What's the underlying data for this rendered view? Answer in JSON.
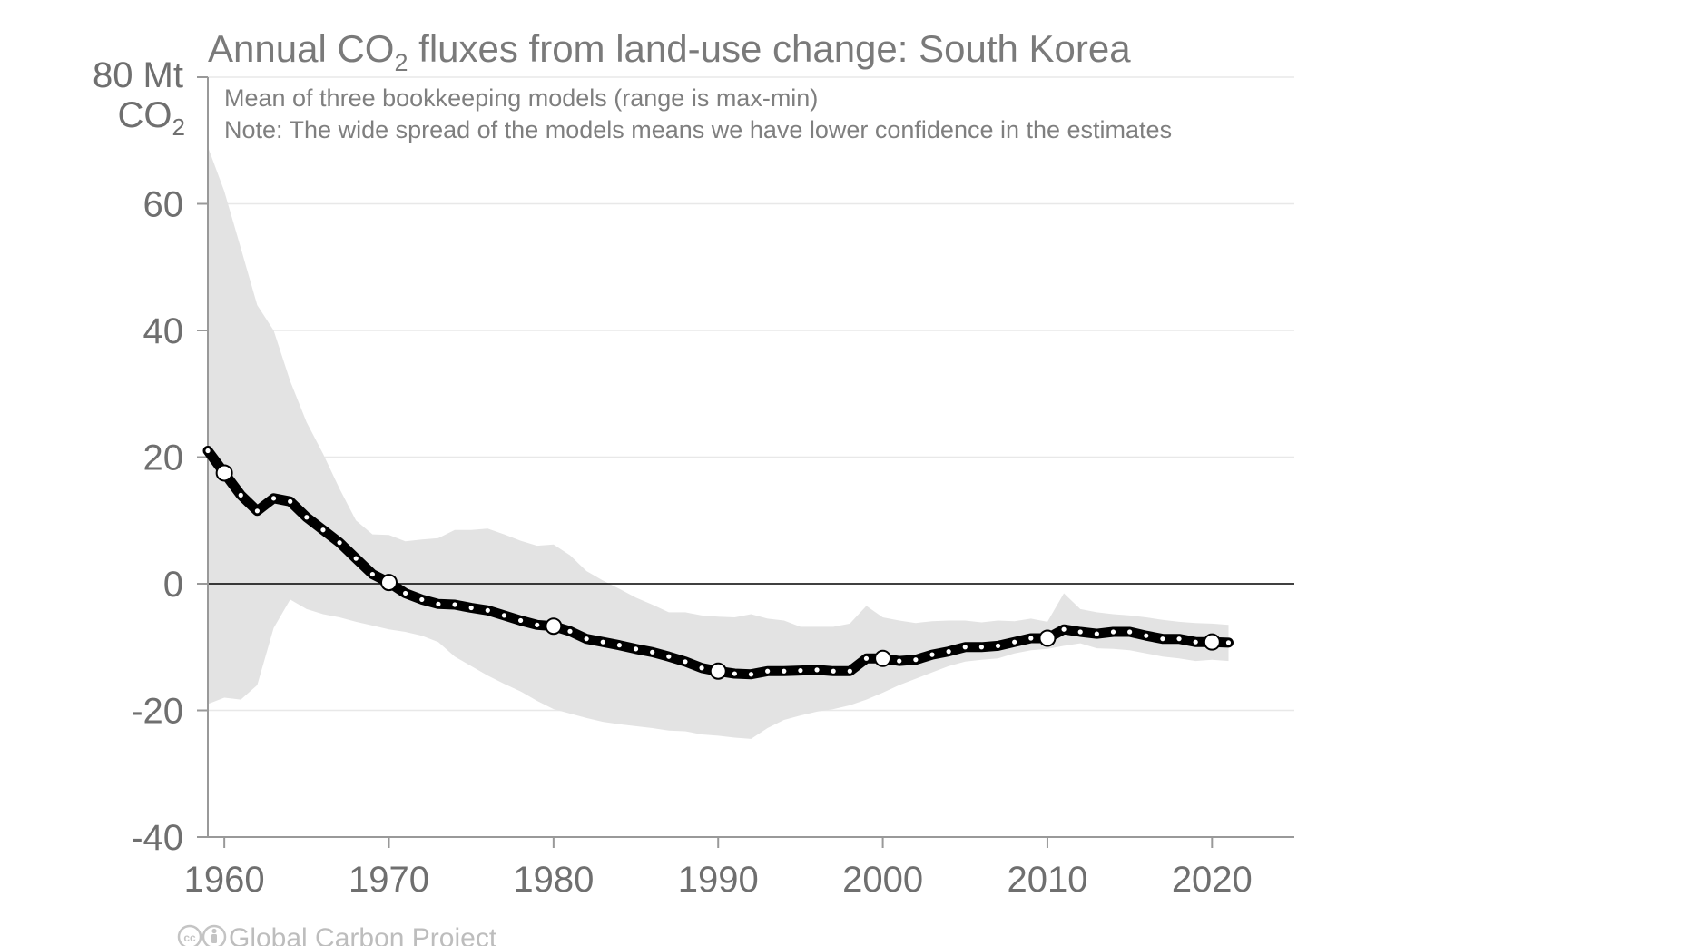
{
  "chart_data": {
    "type": "line",
    "title": "Annual CO₂ fluxes from land-use change: South Korea",
    "title_parts": {
      "pre": "Annual CO",
      "sub": "2",
      "post": " fluxes from land-use change: South Korea"
    },
    "subtitle_lines": [
      "Mean of three bookkeeping models (range is max-min)",
      "Note: The wide spread of the models means we have lower confidence in the estimates"
    ],
    "ylabel": "80 Mt CO₂",
    "ylabel_parts": {
      "line1": "80 Mt",
      "line2_pre": "CO",
      "line2_sub": "2"
    },
    "ylim": [
      -40,
      80
    ],
    "xlim": [
      1959,
      2025
    ],
    "y_ticks": [
      -40,
      -20,
      0,
      20,
      40,
      60
    ],
    "x_ticks": [
      1960,
      1970,
      1980,
      1990,
      2000,
      2010,
      2020
    ],
    "grid": true,
    "zero_line": true,
    "colors": {
      "mean_line": "#000000",
      "range_band": "#e3e3e3",
      "grid": "#e8e8e8",
      "axis": "#999999",
      "text": "#7a7a7a"
    },
    "series": [
      {
        "x": [
          1959,
          1960,
          1961,
          1962,
          1963,
          1964,
          1965,
          1966,
          1967,
          1968,
          1969,
          1970,
          1971,
          1972,
          1973,
          1974,
          1975,
          1976,
          1977,
          1978,
          1979,
          1980,
          1981,
          1982,
          1983,
          1984,
          1985,
          1986,
          1987,
          1988,
          1989,
          1990,
          1991,
          1992,
          1993,
          1994,
          1995,
          1996,
          1997,
          1998,
          1999,
          2000,
          2001,
          2002,
          2003,
          2004,
          2005,
          2006,
          2007,
          2008,
          2009,
          2010,
          2011,
          2012,
          2013,
          2014,
          2015,
          2016,
          2017,
          2018,
          2019,
          2020,
          2021
        ],
        "values": [
          21,
          17.5,
          14,
          11.5,
          13.5,
          13,
          10.5,
          8.5,
          6.5,
          4,
          1.5,
          0.2,
          -1.5,
          -2.5,
          -3.2,
          -3.3,
          -3.8,
          -4.2,
          -5,
          -5.8,
          -6.5,
          -6.7,
          -7.5,
          -8.7,
          -9.2,
          -9.7,
          -10.3,
          -10.8,
          -11.5,
          -12.3,
          -13.3,
          -13.8,
          -14.2,
          -14.3,
          -13.8,
          -13.8,
          -13.7,
          -13.6,
          -13.8,
          -13.8,
          -11.8,
          -11.8,
          -12.2,
          -12,
          -11.2,
          -10.7,
          -10,
          -10,
          -9.8,
          -9.2,
          -8.6,
          -8.6,
          -7.2,
          -7.6,
          -7.9,
          -7.6,
          -7.6,
          -8.2,
          -8.7,
          -8.7,
          -9.2,
          -9.2,
          -9.3
        ]
      }
    ],
    "range_band": {
      "x": [
        1959,
        1960,
        1961,
        1962,
        1963,
        1964,
        1965,
        1966,
        1967,
        1968,
        1969,
        1970,
        1971,
        1972,
        1973,
        1974,
        1975,
        1976,
        1977,
        1978,
        1979,
        1980,
        1981,
        1982,
        1983,
        1984,
        1985,
        1986,
        1987,
        1988,
        1989,
        1990,
        1991,
        1992,
        1993,
        1994,
        1995,
        1996,
        1997,
        1998,
        1999,
        2000,
        2001,
        2002,
        2003,
        2004,
        2005,
        2006,
        2007,
        2008,
        2009,
        2010,
        2011,
        2012,
        2013,
        2014,
        2015,
        2016,
        2017,
        2018,
        2019,
        2020,
        2021
      ],
      "max": [
        69,
        62,
        53,
        44,
        40,
        32,
        25.5,
        20.5,
        15,
        10,
        7.8,
        7.7,
        6.7,
        7,
        7.2,
        8.5,
        8.5,
        8.7,
        7.8,
        6.8,
        6,
        6.2,
        4.5,
        2,
        0.5,
        -0.8,
        -2.2,
        -3.3,
        -4.5,
        -4.5,
        -5,
        -5.2,
        -5.3,
        -4.8,
        -5.5,
        -5.8,
        -6.8,
        -6.8,
        -6.8,
        -6.3,
        -3.5,
        -5.3,
        -5.8,
        -6.2,
        -5.9,
        -5.8,
        -5.8,
        -6.1,
        -5.8,
        -5.9,
        -5.5,
        -6,
        -1.5,
        -4,
        -4.5,
        -4.8,
        -5,
        -5.3,
        -5.7,
        -6,
        -6.2,
        -6.3,
        -6.5
      ],
      "min": [
        -19,
        -18,
        -18.3,
        -16,
        -7,
        -2.5,
        -4,
        -4.8,
        -5.3,
        -6,
        -6.6,
        -7.2,
        -7.6,
        -8.2,
        -9.2,
        -11.5,
        -13,
        -14.5,
        -15.8,
        -17,
        -18.5,
        -19.8,
        -20.5,
        -21.2,
        -21.8,
        -22.2,
        -22.5,
        -22.8,
        -23.2,
        -23.3,
        -23.8,
        -24,
        -24.3,
        -24.5,
        -22.8,
        -21.5,
        -20.8,
        -20.2,
        -19.8,
        -19.2,
        -18.3,
        -17.2,
        -16,
        -15,
        -14,
        -13,
        -12.3,
        -12,
        -11.8,
        -11,
        -10.5,
        -10.3,
        -9.8,
        -9.4,
        -10.2,
        -10.3,
        -10.5,
        -11,
        -11.5,
        -11.8,
        -12.2,
        -12,
        -12.2
      ]
    },
    "marker_years": [
      1960,
      1970,
      1980,
      1990,
      2000,
      2010,
      2020
    ]
  },
  "credit": "Global Carbon Project",
  "credit_icons": [
    "creative-commons-icon",
    "attribution-icon"
  ]
}
